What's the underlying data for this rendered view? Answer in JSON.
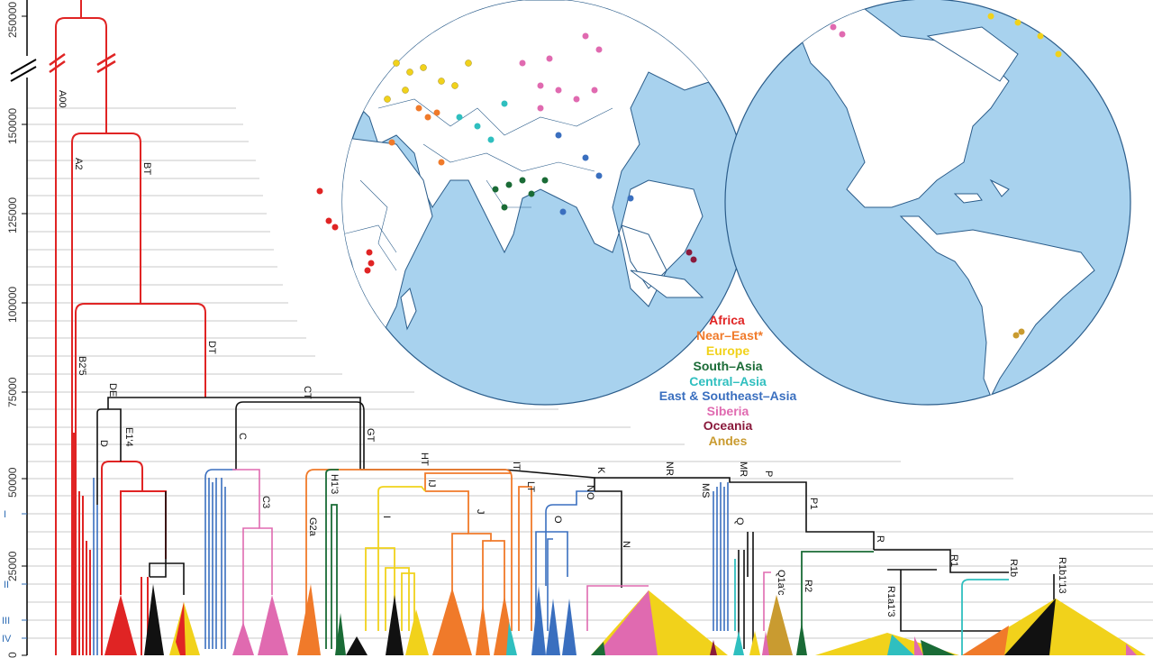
{
  "axis": {
    "ticks": [
      {
        "label": "250000",
        "value": 250000
      },
      {
        "label": "150000",
        "value": 150000
      },
      {
        "label": "125000",
        "value": 125000
      },
      {
        "label": "100000",
        "value": 100000
      },
      {
        "label": "75000",
        "value": 75000
      },
      {
        "label": "50000",
        "value": 50000
      },
      {
        "label": "25000",
        "value": 25000
      },
      {
        "label": "0",
        "value": 0
      }
    ],
    "eras": [
      "I",
      "II",
      "III",
      "IV"
    ]
  },
  "nodes": [
    "A00",
    "A2",
    "BT",
    "B2'5",
    "DT",
    "DE",
    "D",
    "E1'4",
    "CT",
    "C",
    "C3",
    "GT",
    "G2a",
    "H1'3",
    "HT",
    "IJ",
    "I",
    "J",
    "IT",
    "LT",
    "K",
    "NO",
    "O",
    "N",
    "NR",
    "MR",
    "MS",
    "P",
    "P1",
    "Q",
    "Q1a'c",
    "R",
    "R2",
    "R1",
    "R1a1'3",
    "R1b",
    "R1b1'13"
  ],
  "legend": [
    {
      "label": "Africa",
      "color": "#e02424"
    },
    {
      "label": "Near–East*",
      "color": "#f07a2a"
    },
    {
      "label": "Europe",
      "color": "#f1d21b"
    },
    {
      "label": "South–Asia",
      "color": "#1a6b36"
    },
    {
      "label": "Central–Asia",
      "color": "#2fbfbf"
    },
    {
      "label": "East & Southeast–Asia",
      "color": "#3a6fbf"
    },
    {
      "label": "Siberia",
      "color": "#e06ab0"
    },
    {
      "label": "Oceania",
      "color": "#8a1a3c"
    },
    {
      "label": "Andes",
      "color": "#c99b30"
    }
  ]
}
